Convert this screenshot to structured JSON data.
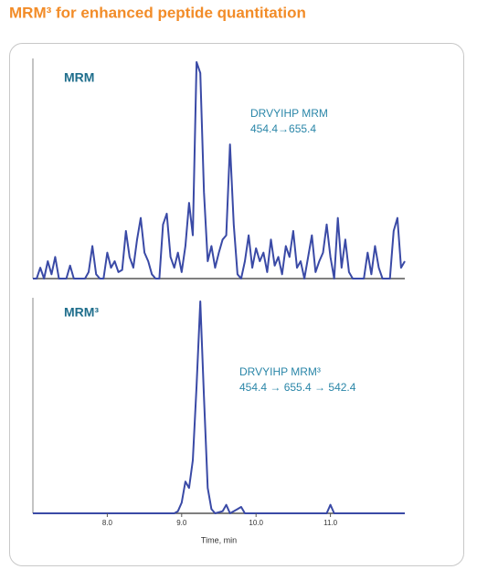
{
  "title": "MRM³ for enhanced peptide quantitation",
  "chart_data": [
    {
      "type": "line",
      "label": "MRM",
      "annotation": [
        "DRVYIHP MRM",
        "454.4→655.4"
      ],
      "x": [
        7.0,
        7.05,
        7.1,
        7.15,
        7.2,
        7.25,
        7.3,
        7.35,
        7.4,
        7.45,
        7.5,
        7.55,
        7.6,
        7.65,
        7.7,
        7.75,
        7.8,
        7.85,
        7.9,
        7.95,
        8.0,
        8.05,
        8.1,
        8.15,
        8.2,
        8.25,
        8.3,
        8.35,
        8.4,
        8.45,
        8.5,
        8.55,
        8.6,
        8.65,
        8.7,
        8.75,
        8.8,
        8.85,
        8.9,
        8.95,
        9.0,
        9.05,
        9.1,
        9.15,
        9.2,
        9.25,
        9.3,
        9.35,
        9.4,
        9.45,
        9.5,
        9.55,
        9.6,
        9.65,
        9.7,
        9.75,
        9.8,
        9.85,
        9.9,
        9.95,
        10.0,
        10.05,
        10.1,
        10.15,
        10.2,
        10.25,
        10.3,
        10.35,
        10.4,
        10.45,
        10.5,
        10.55,
        10.6,
        10.65,
        10.7,
        10.75,
        10.8,
        10.85,
        10.9,
        10.95,
        11.0,
        11.05,
        11.1,
        11.15,
        11.2,
        11.25,
        11.3,
        11.35,
        11.4,
        11.45,
        11.5,
        11.55,
        11.6,
        11.65,
        11.7,
        11.75,
        11.8,
        11.85,
        11.9,
        11.95,
        12.0
      ],
      "series": [
        {
          "color": "#3a4aa6",
          "values": [
            0,
            0,
            5,
            0,
            8,
            2,
            10,
            0,
            0,
            0,
            6,
            0,
            0,
            0,
            0,
            3,
            15,
            2,
            0,
            0,
            12,
            5,
            8,
            3,
            4,
            22,
            10,
            5,
            18,
            28,
            12,
            8,
            2,
            0,
            0,
            25,
            30,
            10,
            5,
            12,
            3,
            15,
            35,
            20,
            100,
            95,
            40,
            8,
            15,
            5,
            12,
            18,
            20,
            62,
            25,
            2,
            0,
            8,
            20,
            5,
            14,
            8,
            12,
            3,
            18,
            6,
            10,
            2,
            15,
            10,
            22,
            5,
            8,
            0,
            10,
            20,
            3,
            8,
            12,
            25,
            10,
            0,
            28,
            5,
            18,
            3,
            0,
            0,
            0,
            0,
            12,
            2,
            15,
            5,
            0,
            0,
            0,
            22,
            28,
            5,
            8
          ]
        }
      ],
      "xlim": [
        7,
        12
      ],
      "ylim": [
        0,
        100
      ]
    },
    {
      "type": "line",
      "label": "MRM³",
      "annotation": [
        "DRVYIHP MRM³",
        "454.4 → 655.4 → 542.4"
      ],
      "x": [
        7.0,
        8.9,
        8.95,
        9.0,
        9.05,
        9.1,
        9.15,
        9.2,
        9.25,
        9.3,
        9.35,
        9.4,
        9.45,
        9.55,
        9.6,
        9.65,
        9.75,
        9.8,
        9.85,
        10.95,
        11.0,
        11.05,
        12.0
      ],
      "series": [
        {
          "color": "#3a4aa6",
          "values": [
            0,
            0,
            1,
            5,
            15,
            12,
            25,
            60,
            100,
            55,
            12,
            2,
            0,
            1,
            4,
            0,
            2,
            3,
            0,
            0,
            4,
            0,
            0
          ]
        }
      ],
      "xlim": [
        7,
        12
      ],
      "ylim": [
        0,
        100
      ],
      "xticks": [
        {
          "value": 8,
          "label": "8.0"
        },
        {
          "value": 9,
          "label": "9.0"
        },
        {
          "value": 10,
          "label": "10.0"
        },
        {
          "value": 11,
          "label": "11.0"
        }
      ],
      "xlabel": "Time, min"
    }
  ]
}
